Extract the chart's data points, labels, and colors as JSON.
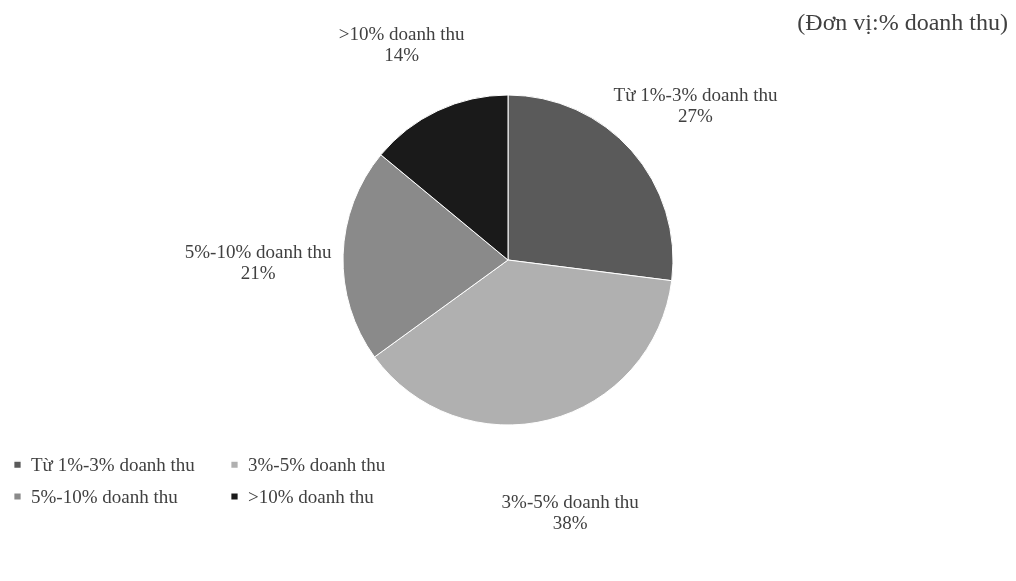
{
  "chart_data": {
    "type": "pie",
    "title": "(Đơn vị:% doanh thu)",
    "categories": [
      "Từ 1%-3% doanh thu",
      "3%-5% doanh thu",
      "5%-10% doanh thu",
      ">10% doanh thu"
    ],
    "values": [
      27,
      38,
      21,
      14
    ],
    "colors": [
      "#5a5a5a",
      "#b0b0b0",
      "#8a8a8a",
      "#1a1a1a"
    ],
    "value_labels": [
      "27%",
      "38%",
      "21%",
      "14%"
    ],
    "legend": "bottom left"
  }
}
